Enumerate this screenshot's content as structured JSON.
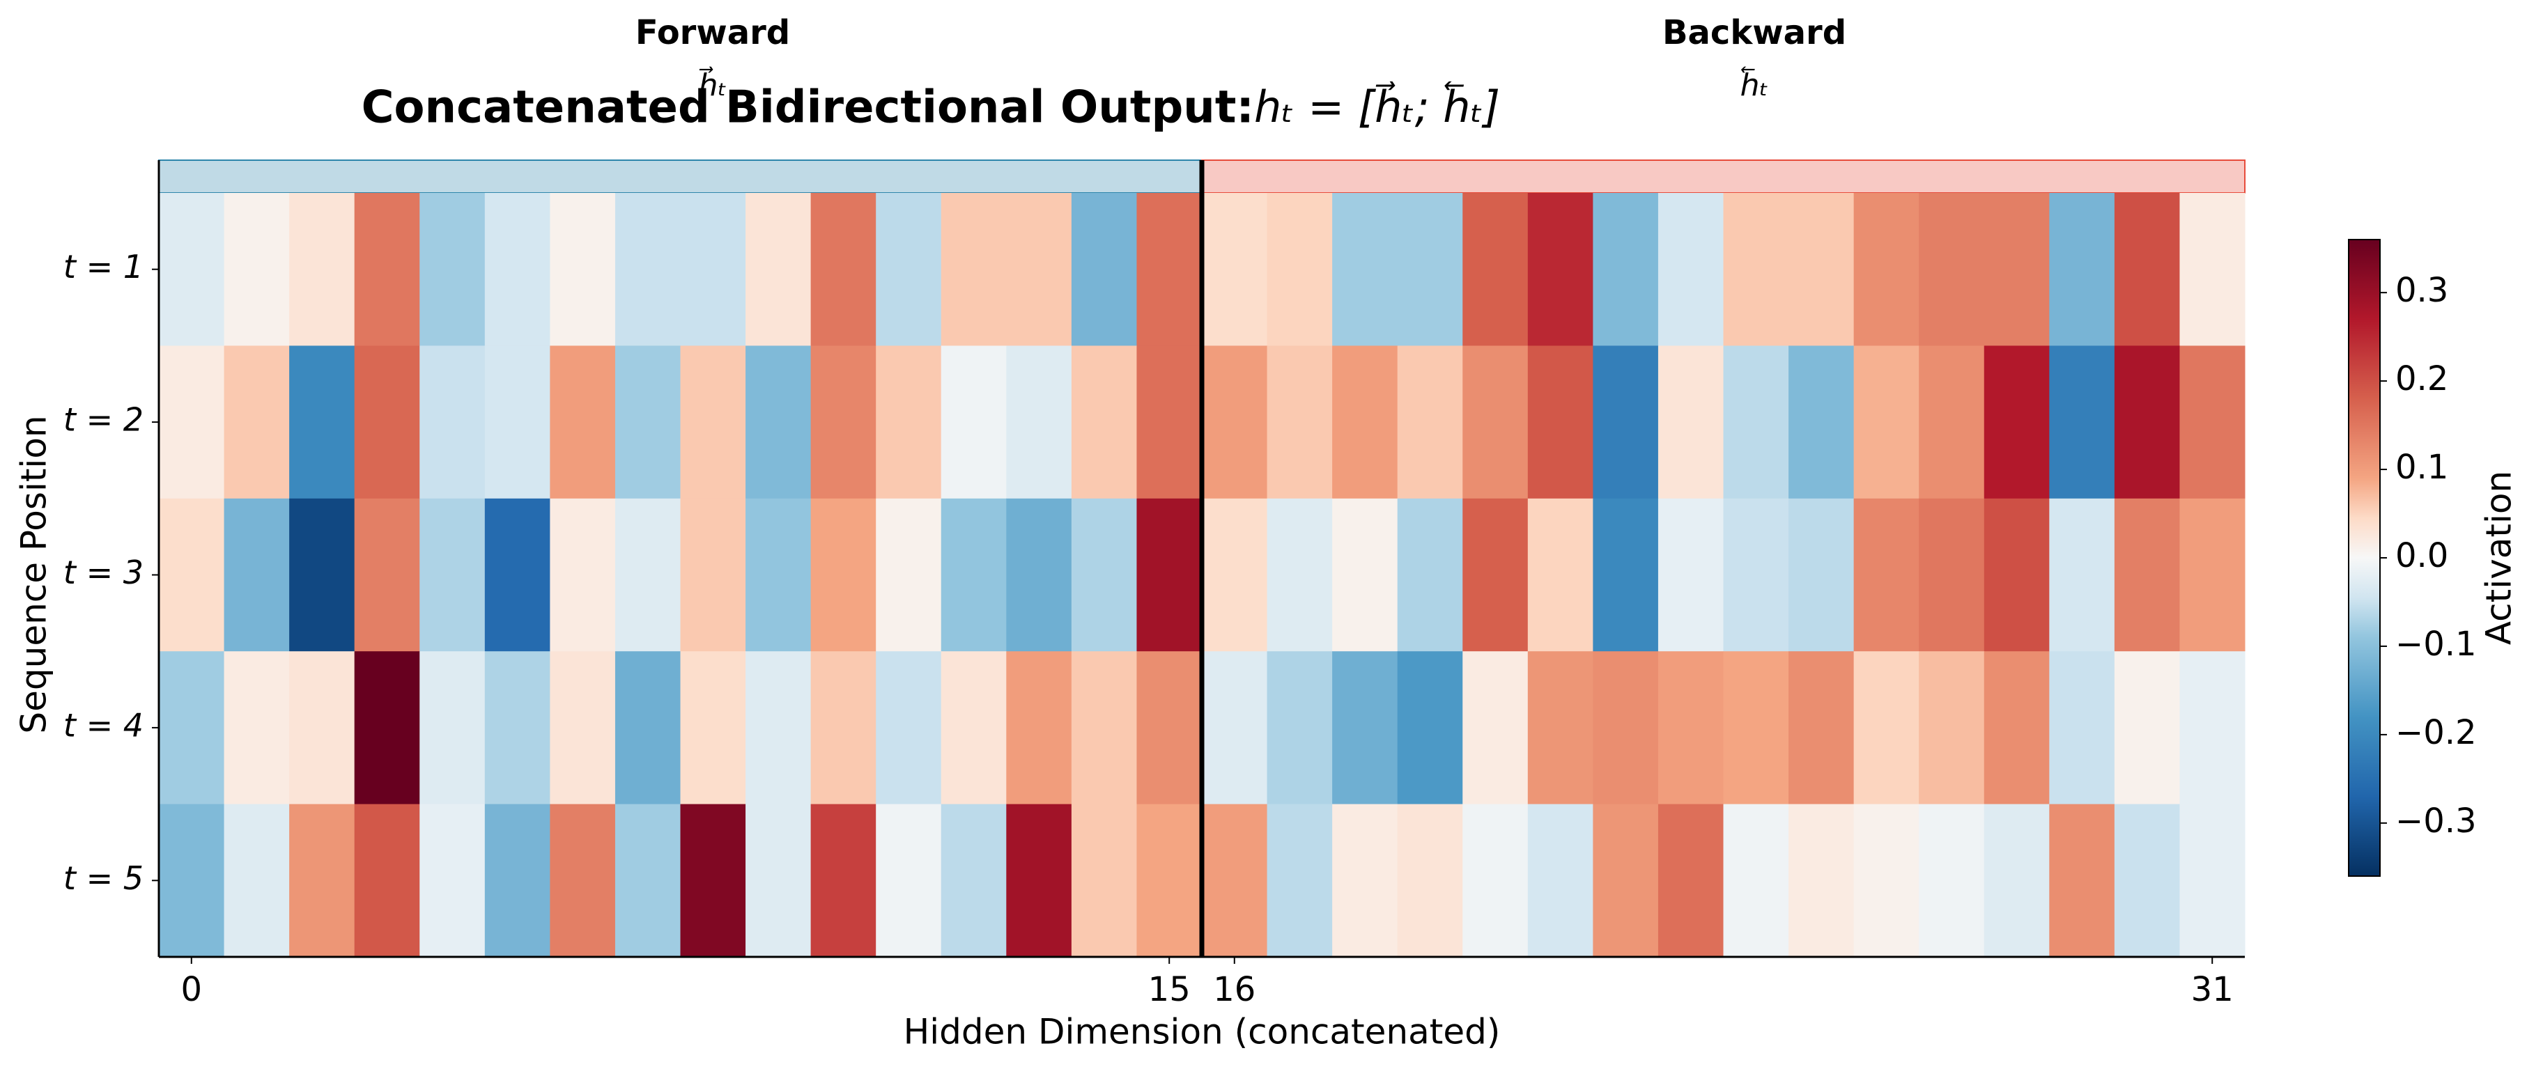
{
  "chart_data": {
    "type": "heatmap",
    "title": "Concatenated Bidirectional Output: ",
    "title_formula": "hₜ = [h⃗ₜ; h⃖ₜ]",
    "annotations": [
      {
        "text": "Forward",
        "symbol": "h⃗ₜ",
        "color": "#2e86ab"
      },
      {
        "text": "Backward",
        "symbol": "h⃖ₜ",
        "color": "#e74c3c"
      }
    ],
    "xlabel": "Hidden Dimension (concatenated)",
    "ylabel": "Sequence Position",
    "rows": [
      "t = 1",
      "t = 2",
      "t = 3",
      "t = 4",
      "t = 5"
    ],
    "xticks": [
      0,
      15,
      16,
      31
    ],
    "values": [
      [
        -0.03,
        0.01,
        0.03,
        0.15,
        -0.08,
        -0.04,
        0.01,
        -0.05,
        -0.05,
        0.03,
        0.15,
        -0.06,
        0.06,
        0.06,
        -0.12,
        0.16,
        0.04,
        0.05,
        -0.08,
        -0.08,
        0.18,
        0.25,
        -0.11,
        -0.04,
        0.06,
        0.06,
        0.12,
        0.14,
        0.14,
        -0.12,
        0.2,
        0.02
      ],
      [
        0.02,
        0.06,
        -0.2,
        0.17,
        -0.05,
        -0.04,
        0.1,
        -0.08,
        0.06,
        -0.11,
        0.13,
        0.06,
        -0.01,
        -0.03,
        0.06,
        0.16,
        0.1,
        0.06,
        0.1,
        0.06,
        0.12,
        0.19,
        -0.22,
        0.03,
        -0.06,
        -0.11,
        0.08,
        0.12,
        0.27,
        -0.22,
        0.28,
        0.15
      ],
      [
        0.04,
        -0.12,
        -0.32,
        0.14,
        -0.07,
        -0.26,
        0.02,
        -0.03,
        0.06,
        -0.09,
        0.09,
        0.01,
        -0.09,
        -0.13,
        -0.07,
        0.29,
        0.04,
        -0.03,
        0.01,
        -0.07,
        0.18,
        0.05,
        -0.2,
        -0.02,
        -0.05,
        -0.06,
        0.13,
        0.15,
        0.2,
        -0.04,
        0.14,
        0.1
      ],
      [
        -0.08,
        0.02,
        0.03,
        0.36,
        -0.03,
        -0.07,
        0.03,
        -0.13,
        0.04,
        -0.03,
        0.06,
        -0.05,
        0.03,
        0.1,
        0.06,
        0.12,
        -0.03,
        -0.07,
        -0.13,
        -0.17,
        0.02,
        0.11,
        0.12,
        0.1,
        0.09,
        0.12,
        0.05,
        0.07,
        0.12,
        -0.05,
        0.01,
        -0.02
      ],
      [
        -0.11,
        -0.03,
        0.11,
        0.19,
        -0.02,
        -0.12,
        0.14,
        -0.08,
        0.33,
        -0.03,
        0.22,
        -0.01,
        -0.06,
        0.29,
        0.06,
        0.09,
        0.1,
        -0.06,
        0.02,
        0.03,
        -0.01,
        -0.04,
        0.11,
        0.16,
        -0.01,
        0.02,
        0.01,
        -0.01,
        -0.03,
        0.12,
        -0.05,
        -0.02
      ]
    ],
    "colormap": "RdBu_r",
    "clim": [
      -0.36,
      0.36
    ],
    "colorbar_label": "Activation",
    "colorbar_ticks": [
      {
        "value": -0.3,
        "label": "−0.3"
      },
      {
        "value": -0.2,
        "label": "−0.2"
      },
      {
        "value": -0.1,
        "label": "−0.1"
      },
      {
        "value": 0,
        "label": "0.0"
      },
      0.1,
      0.2,
      0.3
    ]
  }
}
